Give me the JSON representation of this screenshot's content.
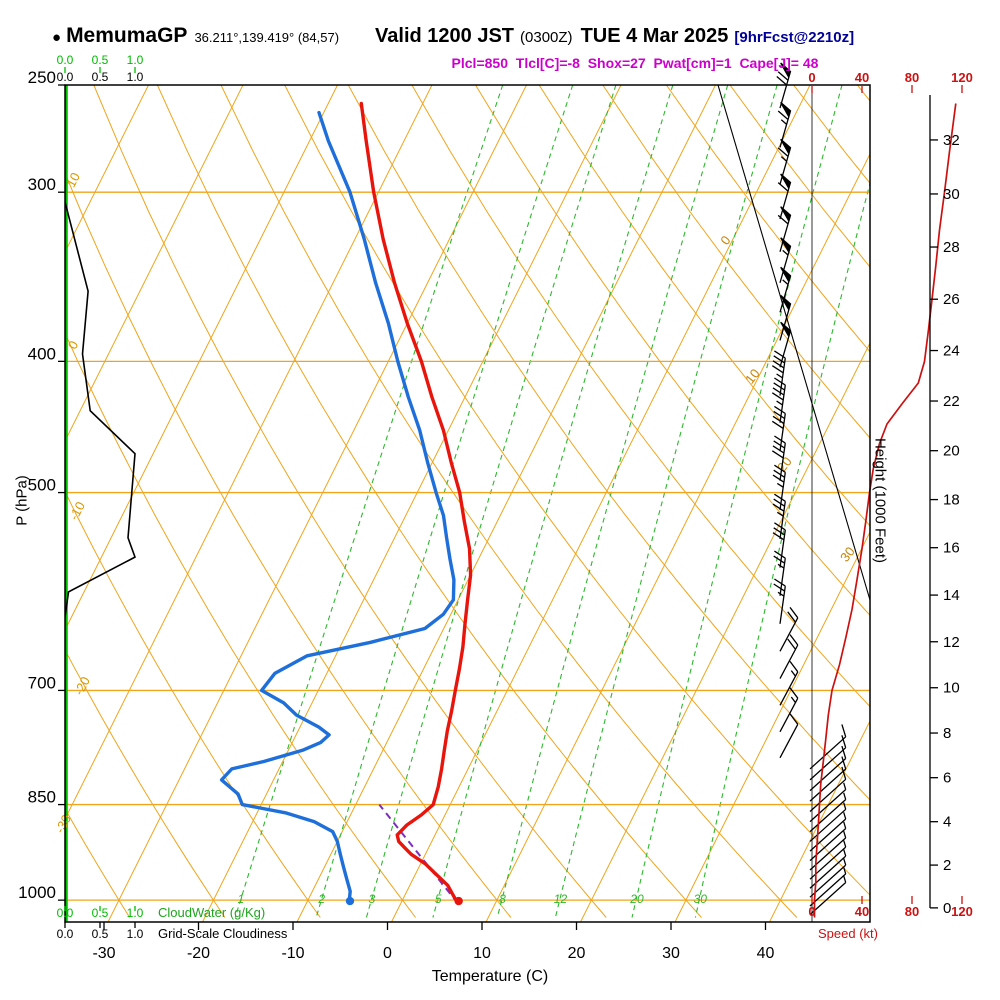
{
  "header": {
    "bullet": "●",
    "station": "MemumaGP",
    "coords": "36.211°,139.419° (84,57)",
    "valid_main": "Valid 1200 JST",
    "valid_z": "(0300Z)",
    "valid_date": "TUE 4 Mar 2025",
    "fcst": "[9hrFcst@2210z]",
    "params": "Plcl=850  Tlcl[C]=-8  Shox=27  Pwat[cm]=1  Cape[J]= 48"
  },
  "axes": {
    "pressure_label": "P (hPa)",
    "pressure_ticks": [
      250,
      300,
      400,
      500,
      700,
      850,
      1000
    ],
    "temp_label": "Temperature (C)",
    "temp_ticks": [
      -30,
      -20,
      -10,
      0,
      10,
      20,
      30,
      40
    ],
    "height_label": "Height (1000 Feet)",
    "height_ticks": [
      0,
      2,
      4,
      6,
      8,
      10,
      12,
      14,
      16,
      18,
      20,
      22,
      24,
      26,
      28,
      30,
      32
    ],
    "speed_label": "Speed (kt)",
    "speed_ticks": [
      0,
      40,
      80,
      120
    ],
    "cloudwater_label": "CloudWater (g/Kg)",
    "cloudiness_label": "Grid-Scale Cloudiness",
    "cloud_scale_ticks": [
      "0.0",
      "0.5",
      "1.0"
    ]
  },
  "colors": {
    "grid_orange": "#efa51c",
    "mix_green": "#2db82d",
    "bright_green": "#00bb00",
    "temp_red": "#e8150d",
    "dew_blue": "#1e6fd9",
    "speed_red": "#cc1111",
    "magenta": "#cc00cc",
    "parcel_purple": "#7b2fbe",
    "adiabat_label": "#dd9900",
    "isotherm_label": "#c8860a",
    "navy": "#000099"
  },
  "chart_data": {
    "type": "skewt-logp-sounding",
    "pressure_range_hpa": [
      250,
      1037
    ],
    "isotherm_range_c": [
      -80,
      40,
      10
    ],
    "dry_adiabat_range_c": [
      -40,
      140,
      10
    ],
    "mixing_ratio_lines_gkg": [
      1,
      2,
      3,
      5,
      8,
      12,
      20,
      30
    ],
    "dry_adiabat_labels_c": [
      10,
      0,
      -10,
      -20,
      -30
    ],
    "isotherm_labels_c": [
      0,
      10,
      20,
      30
    ],
    "temperature_profile": {
      "pressure_hpa": [
        258,
        275,
        300,
        325,
        350,
        375,
        400,
        425,
        450,
        475,
        500,
        525,
        550,
        575,
        600,
        625,
        650,
        675,
        700,
        725,
        750,
        775,
        800,
        825,
        850,
        865,
        880,
        895,
        905,
        915,
        925,
        940,
        955,
        975,
        990,
        1005
      ],
      "temp_c": [
        -46.5,
        -44,
        -40.5,
        -37,
        -33.5,
        -30,
        -26.5,
        -23.5,
        -20.5,
        -18,
        -15.5,
        -13.5,
        -11.5,
        -10,
        -9,
        -8,
        -7,
        -6.2,
        -5.5,
        -4.8,
        -4.2,
        -3.5,
        -2.8,
        -2.2,
        -1.8,
        -2.5,
        -3.5,
        -4,
        -3.5,
        -2.5,
        -1.5,
        0.5,
        2,
        4,
        5,
        6
      ]
    },
    "dewpoint_profile": {
      "pressure_hpa": [
        262,
        275,
        300,
        325,
        350,
        375,
        400,
        425,
        450,
        475,
        500,
        520,
        540,
        560,
        580,
        600,
        615,
        630,
        645,
        660,
        680,
        700,
        715,
        730,
        745,
        755,
        765,
        775,
        790,
        800,
        815,
        835,
        850,
        862,
        875,
        890,
        905,
        925,
        945,
        965,
        985,
        1005
      ],
      "temp_c": [
        -50.5,
        -48,
        -43,
        -39,
        -35.5,
        -32,
        -29,
        -26,
        -23,
        -20.5,
        -18,
        -16,
        -14.5,
        -13,
        -11.5,
        -10.5,
        -10.8,
        -12,
        -17,
        -23,
        -25.5,
        -26,
        -23,
        -21,
        -18,
        -16.5,
        -17,
        -18.5,
        -22,
        -25,
        -25.5,
        -23,
        -22,
        -17,
        -13.5,
        -11,
        -10,
        -9,
        -8,
        -7,
        -6,
        -5.5
      ]
    },
    "surface_point": {
      "pressure_hpa": 1005,
      "temp_c": 6,
      "dewpoint_c": -5.5
    },
    "parcel_path": {
      "pressure_hpa": [
        1005,
        850
      ],
      "temp_c": [
        6,
        -7.5
      ]
    },
    "cloudiness_profile": {
      "pressure_hpa": [
        305,
        355,
        395,
        435,
        468,
        540,
        558,
        592,
        618
      ],
      "fraction": [
        0,
        0.33,
        0.25,
        0.36,
        1.0,
        0.9,
        1.0,
        0.05,
        0
      ]
    },
    "cloud_water_gkg": 0,
    "wind_profile": {
      "pressure_hpa": [
        260,
        278,
        296,
        314,
        332,
        350,
        368,
        386,
        404,
        424,
        444,
        466,
        490,
        515,
        541,
        568,
        596,
        625,
        655,
        686,
        718,
        751,
        785,
        800,
        815,
        830,
        845,
        860,
        875,
        890,
        905,
        920,
        935,
        950,
        965,
        980,
        995,
        1010,
        1025
      ],
      "speed_kt": [
        70,
        65,
        65,
        60,
        60,
        55,
        55,
        50,
        50,
        45,
        45,
        40,
        40,
        35,
        35,
        30,
        25,
        25,
        20,
        20,
        15,
        15,
        10,
        10,
        10,
        9,
        8,
        8,
        7,
        6,
        6,
        5,
        5,
        4,
        4,
        4,
        3,
        3,
        3
      ]
    },
    "speed_curve": {
      "pressure_hpa": [
        258,
        280,
        300,
        320,
        340,
        360,
        380,
        400,
        415,
        430,
        445,
        460,
        480,
        500,
        525,
        550,
        580,
        610,
        640,
        670,
        700,
        730,
        760,
        790,
        820,
        850,
        880,
        910,
        940,
        970,
        1000,
        1030
      ],
      "speed_kt": [
        115,
        110,
        106,
        102,
        99,
        96,
        93,
        90,
        85,
        72,
        60,
        54,
        49,
        46,
        43,
        40,
        36,
        32,
        27,
        22,
        16,
        13,
        11,
        9,
        7,
        6,
        5,
        4,
        3,
        3,
        2,
        2
      ]
    }
  }
}
